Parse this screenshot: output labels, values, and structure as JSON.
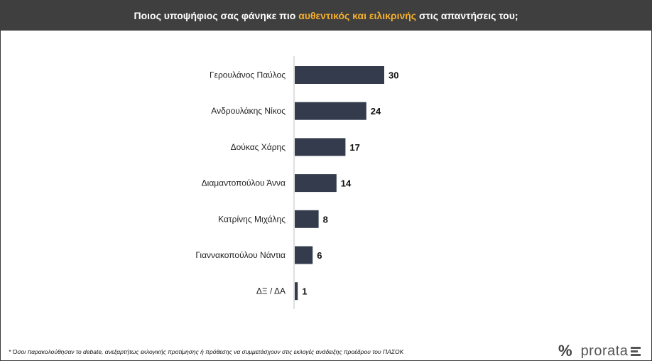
{
  "header": {
    "title_pre": "Ποιος υποψήφιος σας φάνηκε πιο ",
    "title_highlight": "αυθεντικός και ειλικρινής",
    "title_post": " στις απαντήσεις του;"
  },
  "colors": {
    "bar": "#343b4d",
    "header_bg": "#3f3f3f",
    "highlight": "#f5b02e"
  },
  "chart_data": {
    "type": "bar",
    "orientation": "horizontal",
    "categories": [
      "Γερουλάνος Παύλος",
      "Ανδρουλάκης Νίκος",
      "Δούκας Χάρης",
      "Διαμαντοπούλου Άννα",
      "Κατρίνης Μιχάλης",
      "Γιαννακοπούλου Νάντια",
      "ΔΞ / ΔΑ"
    ],
    "values": [
      30,
      24,
      17,
      14,
      8,
      6,
      1
    ],
    "data_labels": [
      "30",
      "24",
      "17",
      "14",
      "8",
      "6",
      "1"
    ],
    "title": "",
    "xlabel": "",
    "ylabel": "",
    "xlim": [
      0,
      30
    ],
    "grid": false,
    "legend": "none"
  },
  "footnote": "* Όσοι παρακολούθησαν το debate, ανεξαρτήτως εκλογικής προτίμησης ή πρόθεσης να συμμετάσχουν στις εκλογές ανάδειξης προέδρου του ΠΑΣΟΚ",
  "logo": {
    "symbol": "%",
    "word": "prorata"
  }
}
